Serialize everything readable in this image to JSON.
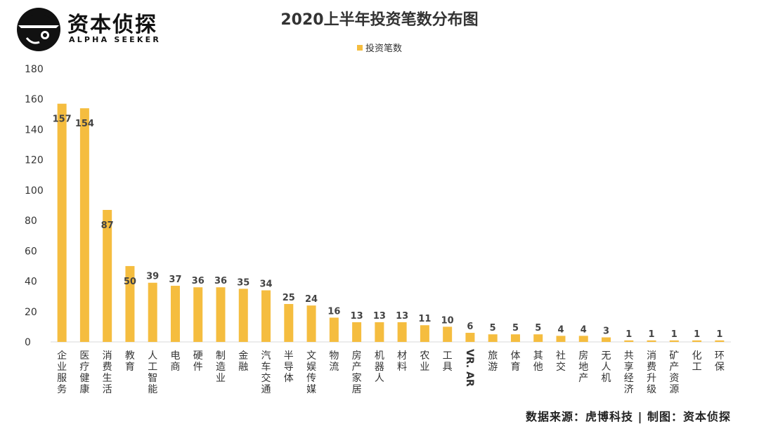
{
  "logo": {
    "name": "资本侦探",
    "sub": "ALPHA SEEKER"
  },
  "chart_data": {
    "type": "bar",
    "title": "2020上半年投资笔数分布图",
    "legend": "投资笔数",
    "series": [
      {
        "name": "投资笔数",
        "color": "#f5bd3f"
      }
    ],
    "categories": [
      "企业服务",
      "医疗健康",
      "消费生活",
      "教育",
      "人工智能",
      "电商",
      "硬件",
      "制造业",
      "金融",
      "汽车交通",
      "半导体",
      "文娱传媒",
      "物流",
      "房产家居",
      "机器人",
      "材料",
      "农业",
      "工具",
      "VR. AR",
      "旅游",
      "体育",
      "其他",
      "社交",
      "房地产",
      "无人机",
      "共享经济",
      "消费升级",
      "矿产资源",
      "化工",
      "环保"
    ],
    "values": [
      157,
      154,
      87,
      50,
      39,
      37,
      36,
      36,
      35,
      34,
      25,
      24,
      16,
      13,
      13,
      13,
      11,
      10,
      6,
      5,
      5,
      5,
      4,
      4,
      3,
      1,
      1,
      1,
      1,
      1
    ],
    "yticks": [
      0,
      20,
      40,
      60,
      80,
      100,
      120,
      140,
      160,
      180
    ],
    "ylim": [
      0,
      180
    ],
    "grid": false,
    "legend_position": "top-center"
  },
  "source": "数据来源：虎博科技 | 制图：资本侦探"
}
